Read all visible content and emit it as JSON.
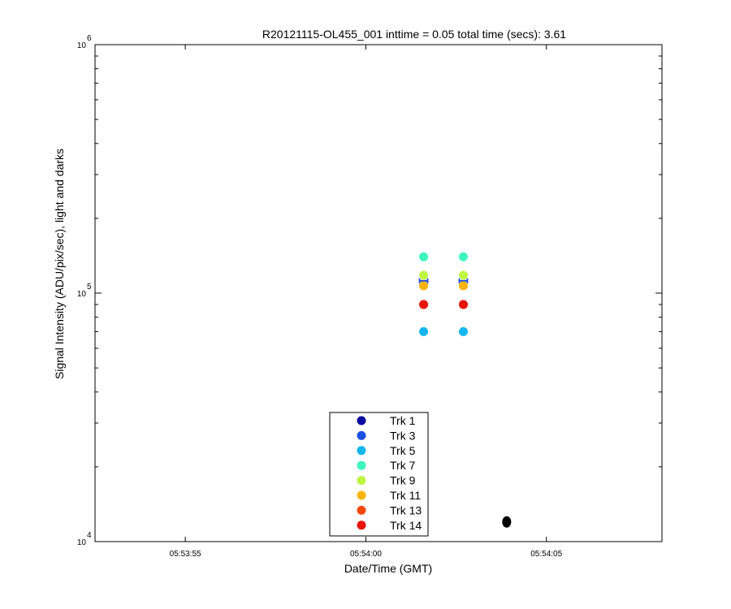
{
  "chart_data": {
    "type": "scatter",
    "title": "R20121115-OL455_001 inttime = 0.05 total time (secs): 3.61",
    "xlabel": "Date/Time (GMT)",
    "ylabel": "Signal Intensity (ADU/pix/sec), light and darks",
    "x_scale": "time",
    "y_scale": "log",
    "xlim": [
      "05:53:52.5",
      "05:54:08.2"
    ],
    "ylim": [
      10000,
      1000000
    ],
    "x_ticks": [
      "05:53:55",
      "05:54:00",
      "05:54:05"
    ],
    "y_ticks": [
      {
        "base": "10",
        "exp": "4",
        "value": 10000
      },
      {
        "base": "10",
        "exp": "5",
        "value": 100000
      },
      {
        "base": "10",
        "exp": "6",
        "value": 1000000
      }
    ],
    "grid": false,
    "legend_position": "bottom-center",
    "series": [
      {
        "name": "Trk 1",
        "color": "#0a0aa0",
        "points": [
          {
            "x": "05:54:01.6",
            "y": 112000
          },
          {
            "x": "05:54:02.7",
            "y": 112000
          }
        ]
      },
      {
        "name": "Trk 3",
        "color": "#1a4fe6",
        "points": [
          {
            "x": "05:54:01.6",
            "y": 112000
          },
          {
            "x": "05:54:02.7",
            "y": 112000
          }
        ]
      },
      {
        "name": "Trk 5",
        "color": "#13b6f0",
        "points": [
          {
            "x": "05:54:01.6",
            "y": 70000
          },
          {
            "x": "05:54:02.7",
            "y": 70000
          }
        ]
      },
      {
        "name": "Trk 7",
        "color": "#3ff5c0",
        "points": [
          {
            "x": "05:54:01.6",
            "y": 140000
          },
          {
            "x": "05:54:02.7",
            "y": 140000
          }
        ]
      },
      {
        "name": "Trk 9",
        "color": "#bdf542",
        "points": [
          {
            "x": "05:54:01.6",
            "y": 118000
          },
          {
            "x": "05:54:02.7",
            "y": 118000
          }
        ]
      },
      {
        "name": "Trk 11",
        "color": "#fbb40a",
        "points": [
          {
            "x": "05:54:01.6",
            "y": 107000
          },
          {
            "x": "05:54:02.7",
            "y": 107000
          }
        ]
      },
      {
        "name": "Trk 13",
        "color": "#f5490e",
        "points": [
          {
            "x": "05:54:01.6",
            "y": 90000
          },
          {
            "x": "05:54:02.7",
            "y": 90000
          }
        ]
      },
      {
        "name": "Trk 14",
        "color": "#e8140a",
        "points": [
          {
            "x": "05:54:01.6",
            "y": 90000
          },
          {
            "x": "05:54:02.7",
            "y": 90000
          }
        ]
      }
    ],
    "dark_series": {
      "color": "#000000",
      "points": [
        {
          "x": "05:54:03.9",
          "y": 12000
        }
      ]
    }
  }
}
